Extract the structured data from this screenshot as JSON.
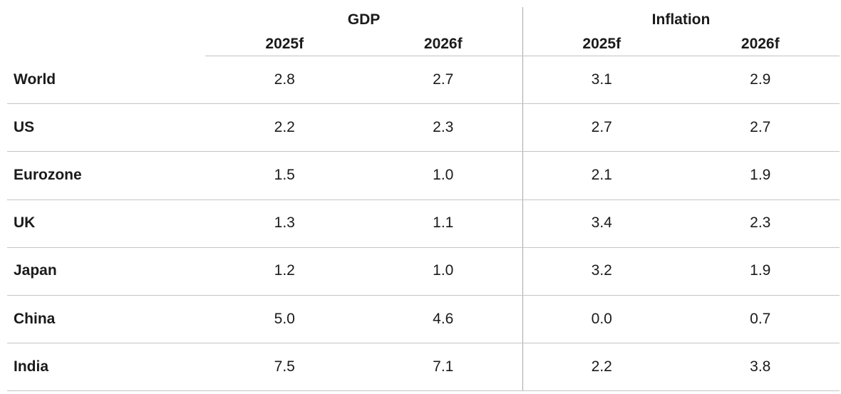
{
  "table": {
    "groups": [
      "GDP",
      "Inflation"
    ],
    "columns": [
      "2025f",
      "2026f",
      "2025f",
      "2026f"
    ],
    "rows": [
      [
        "World",
        "2.8",
        "2.7",
        "3.1",
        "2.9"
      ],
      [
        "US",
        "2.2",
        "2.3",
        "2.7",
        "2.7"
      ],
      [
        "Eurozone",
        "1.5",
        "1.0",
        "2.1",
        "1.9"
      ],
      [
        "UK",
        "1.3",
        "1.1",
        "3.4",
        "2.3"
      ],
      [
        "Japan",
        "1.2",
        "1.0",
        "3.2",
        "1.9"
      ],
      [
        "China",
        "5.0",
        "4.6",
        "0.0",
        "0.7"
      ],
      [
        "India",
        "7.5",
        "7.1",
        "2.2",
        "3.8"
      ]
    ]
  }
}
